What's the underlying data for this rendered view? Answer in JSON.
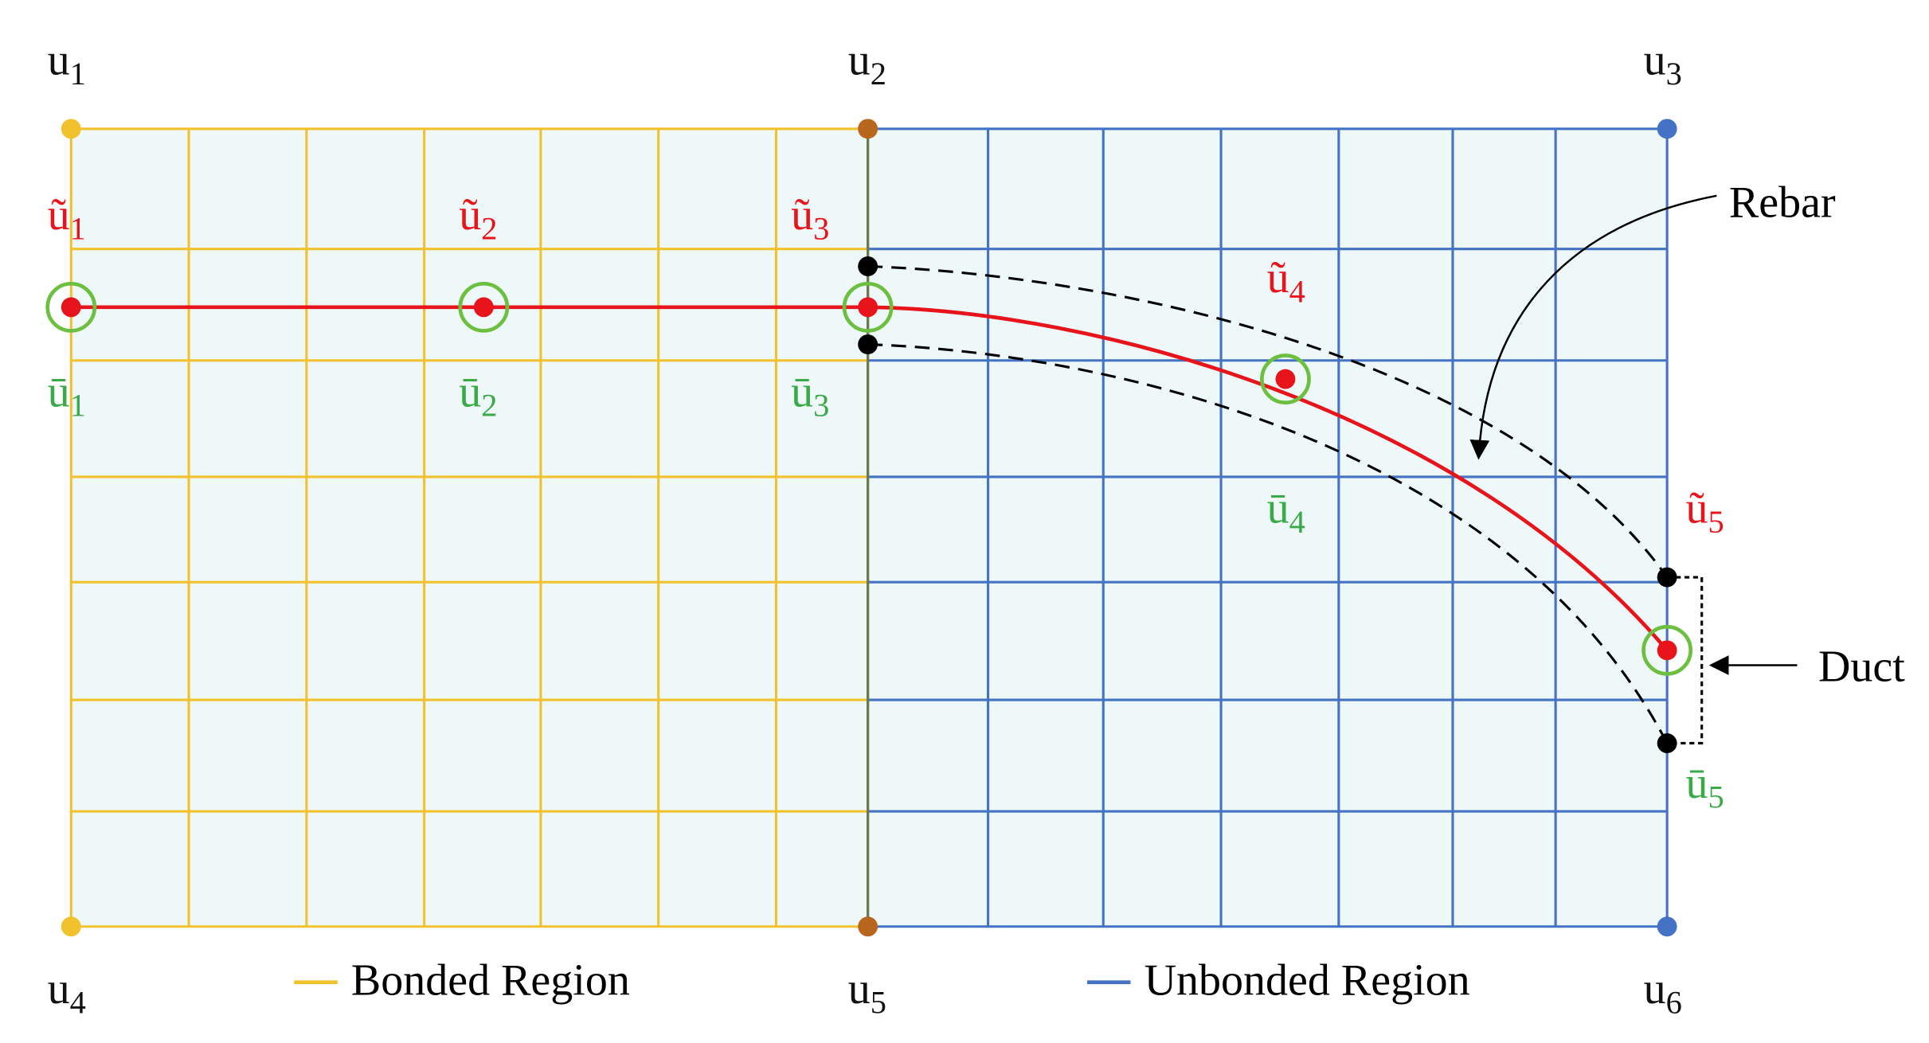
{
  "nodes_top": [
    {
      "base": "u",
      "sub": "1"
    },
    {
      "base": "u",
      "sub": "2"
    },
    {
      "base": "u",
      "sub": "3"
    }
  ],
  "nodes_bottom": [
    {
      "base": "u",
      "sub": "4"
    },
    {
      "base": "u",
      "sub": "5"
    },
    {
      "base": "u",
      "sub": "6"
    }
  ],
  "rebar_nodes": [
    {
      "base": "ũ",
      "sub": "1"
    },
    {
      "base": "ũ",
      "sub": "2"
    },
    {
      "base": "ũ",
      "sub": "3"
    },
    {
      "base": "ũ",
      "sub": "4"
    },
    {
      "base": "ũ",
      "sub": "5"
    }
  ],
  "duct_nodes": [
    {
      "base": "ū",
      "sub": "1"
    },
    {
      "base": "ū",
      "sub": "2"
    },
    {
      "base": "ū",
      "sub": "3"
    },
    {
      "base": "ū",
      "sub": "4"
    },
    {
      "base": "ū",
      "sub": "5"
    }
  ],
  "annotations": {
    "rebar": "Rebar",
    "duct": "Duct"
  },
  "legend": {
    "bonded": "Bonded Region",
    "unbonded": "Unbonded Region"
  }
}
